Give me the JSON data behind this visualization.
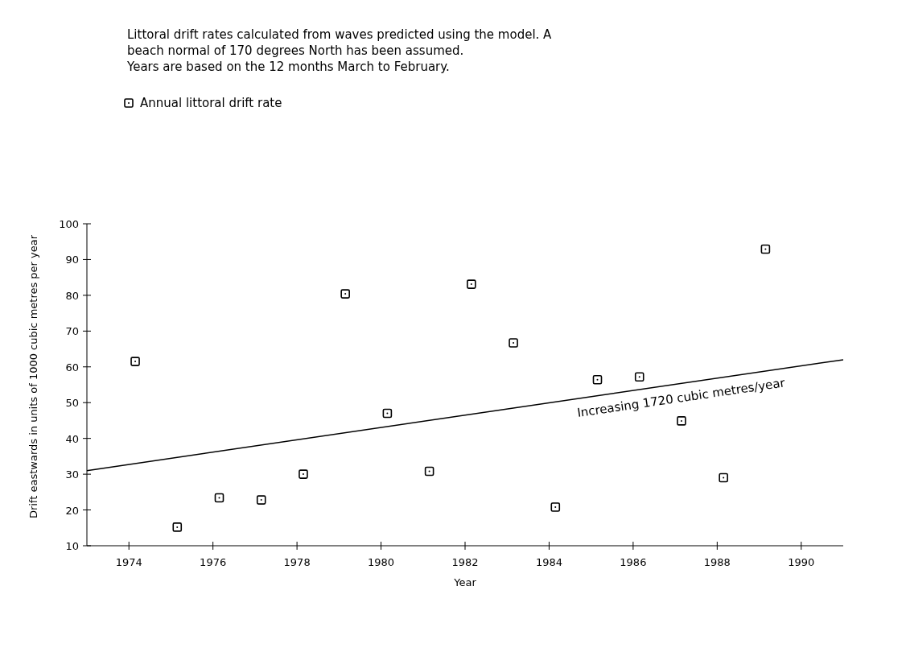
{
  "chart_data": {
    "type": "scatter",
    "title": "Littoral drift rates calculated from waves predicted using the model. A beach normal of 170 degrees North has been assumed.",
    "subtitle": "Years are based on the 12 months March to February.",
    "xlabel": "Year",
    "ylabel": "Drift eastwards in units of 1000 cubic metres per year",
    "x": [
      1974.15,
      1975.15,
      1976.15,
      1977.15,
      1978.15,
      1979.15,
      1980.15,
      1981.15,
      1982.15,
      1983.15,
      1984.15,
      1985.15,
      1986.15,
      1987.15,
      1988.15,
      1989.15
    ],
    "series": [
      {
        "name": "Annual littoral drift rate",
        "color": "#000000",
        "values": [
          61.5,
          15.2,
          23.4,
          22.8,
          30.0,
          80.4,
          47.0,
          30.8,
          83.1,
          66.7,
          20.8,
          56.4,
          57.2,
          44.9,
          29.0,
          92.9
        ]
      },
      {
        "type": "line",
        "color": "#000000",
        "marker": "none",
        "x": [
          1973,
          1991
        ],
        "values": [
          31,
          62
        ]
      }
    ],
    "annotations": [
      "Increasing 1720 cubic metres/year"
    ],
    "xlim": [
      1973,
      1991
    ],
    "xticks": [
      1974,
      1976,
      1978,
      1980,
      1982,
      1984,
      1986,
      1988,
      1990
    ],
    "ylim": [
      10,
      100
    ],
    "yticks": [
      10,
      20,
      30,
      40,
      50,
      60,
      70,
      80,
      90,
      100
    ],
    "marker": "square",
    "line_style": "solid",
    "legend": "top left",
    "grid": false
  }
}
